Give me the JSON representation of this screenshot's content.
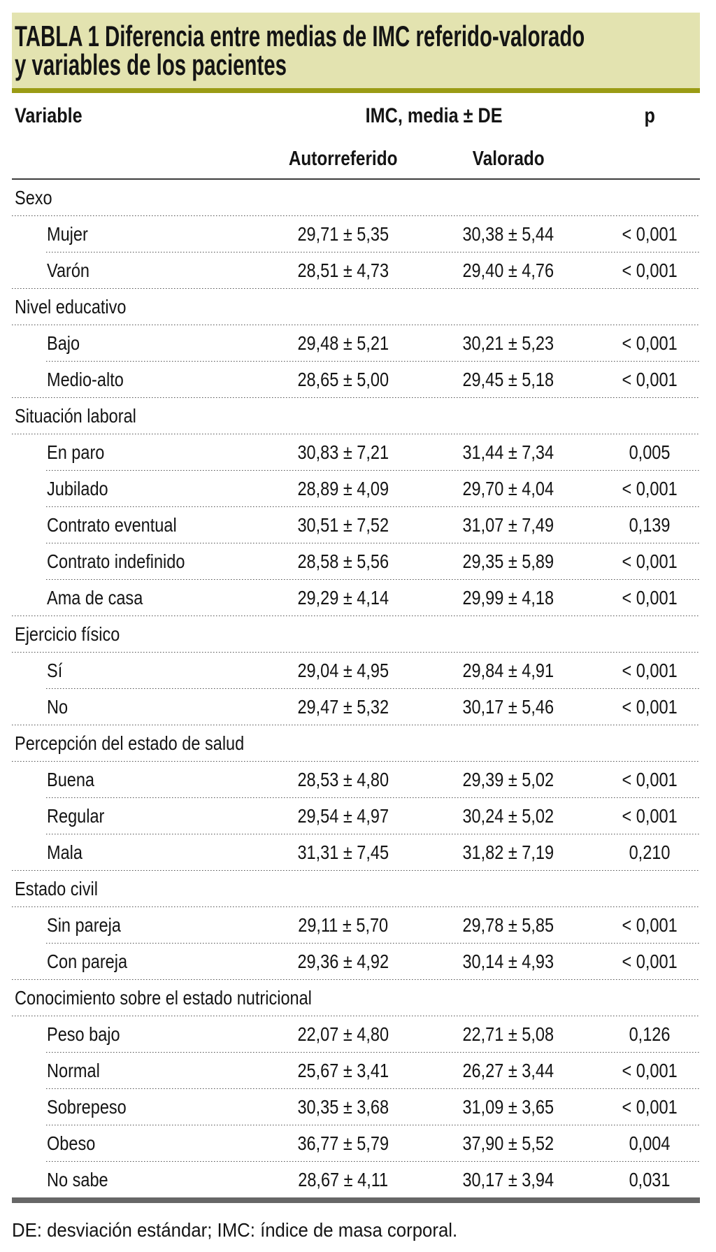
{
  "title": {
    "line1": "TABLA 1 Diferencia entre medias de IMC referido-valorado",
    "line2": "y variables de los pacientes"
  },
  "columns": {
    "variable": "Variable",
    "group": "IMC, media ± DE",
    "p": "p",
    "sub_autorreferido": "Autorreferido",
    "sub_valorado": "Valorado"
  },
  "table": {
    "rows": [
      {
        "type": "section",
        "label": "Sexo"
      },
      {
        "type": "data",
        "label": "Mujer",
        "autorreferido": "29,71 ± 5,35",
        "valorado": "30,38 ± 5,44",
        "p": "< 0,001"
      },
      {
        "type": "data",
        "label": "Varón",
        "autorreferido": "28,51 ± 4,73",
        "valorado": "29,40 ± 4,76",
        "p": "< 0,001"
      },
      {
        "type": "section",
        "label": "Nivel educativo"
      },
      {
        "type": "data",
        "label": "Bajo",
        "autorreferido": "29,48 ± 5,21",
        "valorado": "30,21 ± 5,23",
        "p": "< 0,001"
      },
      {
        "type": "data",
        "label": "Medio-alto",
        "autorreferido": "28,65 ± 5,00",
        "valorado": "29,45 ± 5,18",
        "p": "< 0,001"
      },
      {
        "type": "section",
        "label": "Situación laboral"
      },
      {
        "type": "data",
        "label": "En paro",
        "autorreferido": "30,83 ± 7,21",
        "valorado": "31,44 ± 7,34",
        "p": "0,005"
      },
      {
        "type": "data",
        "label": "Jubilado",
        "autorreferido": "28,89 ± 4,09",
        "valorado": "29,70 ± 4,04",
        "p": "< 0,001"
      },
      {
        "type": "data",
        "label": "Contrato eventual",
        "autorreferido": "30,51 ± 7,52",
        "valorado": "31,07 ± 7,49",
        "p": "0,139"
      },
      {
        "type": "data",
        "label": "Contrato indefinido",
        "autorreferido": "28,58 ± 5,56",
        "valorado": "29,35 ± 5,89",
        "p": "< 0,001"
      },
      {
        "type": "data",
        "label": "Ama de casa",
        "autorreferido": "29,29 ± 4,14",
        "valorado": "29,99 ± 4,18",
        "p": "< 0,001"
      },
      {
        "type": "section",
        "label": "Ejercicio físico"
      },
      {
        "type": "data",
        "label": "Sí",
        "autorreferido": "29,04 ± 4,95",
        "valorado": "29,84 ± 4,91",
        "p": "< 0,001"
      },
      {
        "type": "data",
        "label": "No",
        "autorreferido": "29,47 ± 5,32",
        "valorado": "30,17 ± 5,46",
        "p": "< 0,001"
      },
      {
        "type": "section",
        "label": "Percepción del estado de salud"
      },
      {
        "type": "data",
        "label": "Buena",
        "autorreferido": "28,53 ± 4,80",
        "valorado": "29,39 ± 5,02",
        "p": "< 0,001"
      },
      {
        "type": "data",
        "label": "Regular",
        "autorreferido": "29,54 ± 4,97",
        "valorado": "30,24 ± 5,02",
        "p": "< 0,001"
      },
      {
        "type": "data",
        "label": "Mala",
        "autorreferido": "31,31 ± 7,45",
        "valorado": "31,82 ± 7,19",
        "p": "0,210"
      },
      {
        "type": "section",
        "label": "Estado civil"
      },
      {
        "type": "data",
        "label": "Sin pareja",
        "autorreferido": "29,11 ± 5,70",
        "valorado": "29,78 ± 5,85",
        "p": "< 0,001"
      },
      {
        "type": "data",
        "label": "Con pareja",
        "autorreferido": "29,36 ± 4,92",
        "valorado": "30,14 ± 4,93",
        "p": "< 0,001"
      },
      {
        "type": "section",
        "label": "Conocimiento sobre el estado nutricional"
      },
      {
        "type": "data",
        "label": "Peso bajo",
        "autorreferido": "22,07 ± 4,80",
        "valorado": "22,71 ± 5,08",
        "p": "0,126"
      },
      {
        "type": "data",
        "label": "Normal",
        "autorreferido": "25,67 ± 3,41",
        "valorado": "26,27 ± 3,44",
        "p": "< 0,001"
      },
      {
        "type": "data",
        "label": "Sobrepeso",
        "autorreferido": "30,35 ± 3,68",
        "valorado": "31,09 ± 3,65",
        "p": "< 0,001"
      },
      {
        "type": "data",
        "label": "Obeso",
        "autorreferido": "36,77 ± 5,79",
        "valorado": "37,90 ± 5,52",
        "p": "0,004"
      },
      {
        "type": "data",
        "label": "No sabe",
        "autorreferido": "28,67 ± 4,11",
        "valorado": "30,17 ± 3,94",
        "p": "0,031"
      }
    ]
  },
  "footnote": "DE: desviación estándar; IMC: índice de masa corporal.",
  "colors": {
    "title_band_bg": "#e3e3b0",
    "accent_olive": "#9a9b14",
    "bottom_rule_gray": "#676767",
    "text": "#141414"
  }
}
